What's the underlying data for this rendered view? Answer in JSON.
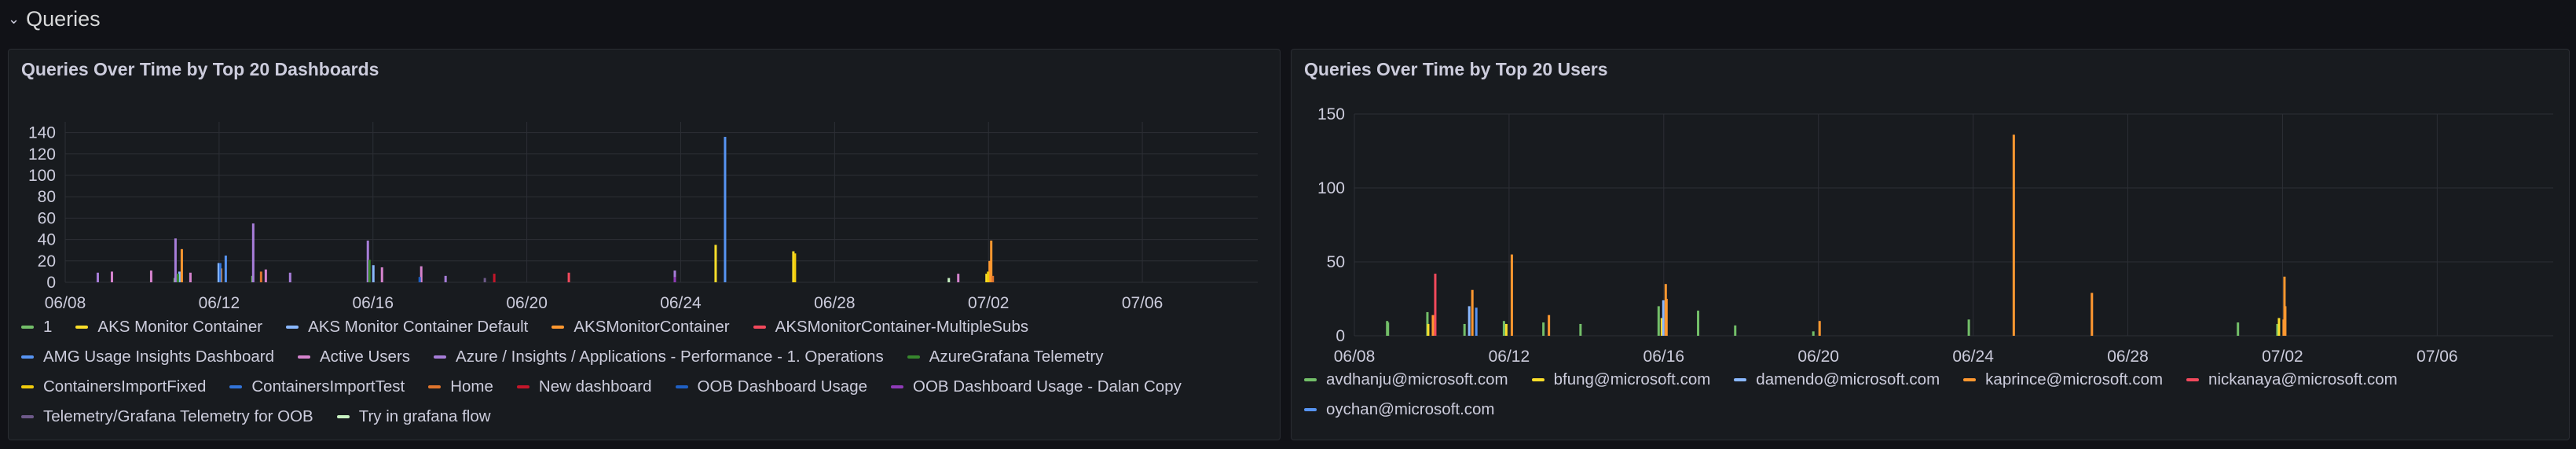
{
  "row": {
    "title": "Queries",
    "chevron": "chevron-down-icon"
  },
  "chart_data": [
    {
      "type": "bar",
      "title": "Queries Over Time by Top 20 Dashboards",
      "xlabel": "",
      "ylabel": "",
      "x_ticks": [
        "06/08",
        "06/12",
        "06/16",
        "06/20",
        "06/24",
        "06/28",
        "07/02",
        "07/06"
      ],
      "y_ticks": [
        "0",
        "20",
        "40",
        "60",
        "80",
        "100",
        "120",
        "140"
      ],
      "ylim": [
        0,
        150
      ],
      "xlim": [
        "06/08",
        "07/09"
      ],
      "grid": true,
      "legend_position": "bottom",
      "series": [
        {
          "name": "1",
          "color": "#73bf69",
          "points": [
            [
              "06/11",
              4
            ],
            [
              "06/13",
              6
            ]
          ]
        },
        {
          "name": "AKS Monitor Container",
          "color": "#fade2a",
          "points": [
            [
              "06/25",
              35
            ],
            [
              "06/27",
              29
            ],
            [
              "07/02",
              8
            ]
          ]
        },
        {
          "name": "AKS Monitor Container Default",
          "color": "#8ab8ff",
          "points": [
            [
              "06/11",
              10
            ],
            [
              "06/12",
              18
            ],
            [
              "06/16",
              16
            ]
          ]
        },
        {
          "name": "AKSMonitorContainer",
          "color": "#ff9830",
          "points": [
            [
              "06/11",
              31
            ],
            [
              "06/12",
              13
            ],
            [
              "07/02",
              39
            ],
            [
              "07/02",
              20
            ]
          ]
        },
        {
          "name": "AKSMonitorContainer-MultipleSubs",
          "color": "#f2495c",
          "points": [
            [
              "06/21",
              9
            ]
          ]
        },
        {
          "name": "AMG Usage Insights Dashboard",
          "color": "#5794f2",
          "points": [
            [
              "06/25",
              136
            ],
            [
              "06/12",
              25
            ]
          ]
        },
        {
          "name": "Active Users",
          "color": "#d683ce",
          "points": [
            [
              "06/09",
              10
            ],
            [
              "06/10",
              11
            ],
            [
              "06/11",
              9
            ],
            [
              "06/13",
              12
            ],
            [
              "06/16",
              14
            ],
            [
              "06/17",
              15
            ],
            [
              "07/01",
              8
            ]
          ]
        },
        {
          "name": "Azure / Insights / Applications - Performance - 1. Operations",
          "color": "#a77dd9",
          "points": [
            [
              "06/09",
              9
            ],
            [
              "06/11",
              41
            ],
            [
              "06/13",
              55
            ],
            [
              "06/14",
              9
            ],
            [
              "06/16",
              39
            ],
            [
              "06/18",
              6
            ],
            [
              "06/24",
              11
            ]
          ]
        },
        {
          "name": "AzureGrafana Telemetry",
          "color": "#37872d",
          "points": [
            [
              "06/16",
              21
            ],
            [
              "06/11",
              8
            ]
          ]
        },
        {
          "name": "ContainersImportFixed",
          "color": "#f2cc0c",
          "points": [
            [
              "06/27",
              27
            ],
            [
              "07/02",
              10
            ]
          ]
        },
        {
          "name": "ContainersImportTest",
          "color": "#3274d9",
          "points": [
            [
              "06/12",
              18
            ]
          ]
        },
        {
          "name": "Home",
          "color": "#e0752d",
          "points": [
            [
              "06/13",
              10
            ],
            [
              "07/02",
              6
            ]
          ]
        },
        {
          "name": "New dashboard",
          "color": "#c4162a",
          "points": [
            [
              "06/19",
              8
            ]
          ]
        },
        {
          "name": "OOB Dashboard Usage",
          "color": "#1f60c4",
          "points": [
            [
              "06/17",
              5
            ]
          ]
        },
        {
          "name": "OOB Dashboard Usage - Dalan Copy",
          "color": "#8f3bb8",
          "points": [
            [
              "06/24",
              5
            ]
          ]
        },
        {
          "name": "Telemetry/Grafana Telemetry for OOB",
          "color": "#6e5a8a",
          "points": [
            [
              "06/19",
              4
            ]
          ]
        },
        {
          "name": "Try in grafana flow",
          "color": "#c8f2c2",
          "points": [
            [
              "07/01",
              4
            ]
          ]
        }
      ]
    },
    {
      "type": "bar",
      "title": "Queries Over Time by Top 20 Users",
      "xlabel": "",
      "ylabel": "",
      "x_ticks": [
        "06/08",
        "06/12",
        "06/16",
        "06/20",
        "06/24",
        "06/28",
        "07/02",
        "07/06"
      ],
      "y_ticks": [
        "0",
        "50",
        "100",
        "150"
      ],
      "ylim": [
        0,
        150
      ],
      "xlim": [
        "06/08",
        "07/09"
      ],
      "grid": true,
      "legend_position": "bottom",
      "series": [
        {
          "name": "avdhanju@microsoft.com",
          "color": "#73bf69",
          "points": [
            [
              "06/09",
              10
            ],
            [
              "06/09",
              9
            ],
            [
              "06/10",
              16
            ],
            [
              "06/11",
              8
            ],
            [
              "06/12",
              10
            ],
            [
              "06/13",
              9
            ],
            [
              "06/14",
              8
            ],
            [
              "06/16",
              20
            ],
            [
              "06/17",
              17
            ],
            [
              "06/18",
              7
            ],
            [
              "06/20",
              3
            ],
            [
              "06/24",
              11
            ],
            [
              "07/01",
              9
            ],
            [
              "07/02",
              8
            ]
          ]
        },
        {
          "name": "bfung@microsoft.com",
          "color": "#fade2a",
          "points": [
            [
              "06/10",
              8
            ],
            [
              "06/12",
              8
            ],
            [
              "06/16",
              12
            ],
            [
              "07/02",
              12
            ]
          ]
        },
        {
          "name": "damendo@microsoft.com",
          "color": "#8ab8ff",
          "points": [
            [
              "06/11",
              20
            ],
            [
              "06/16",
              24
            ]
          ]
        },
        {
          "name": "kaprince@microsoft.com",
          "color": "#ff9830",
          "points": [
            [
              "06/10",
              14
            ],
            [
              "06/11",
              31
            ],
            [
              "06/12",
              55
            ],
            [
              "06/13",
              14
            ],
            [
              "06/16",
              35
            ],
            [
              "06/16",
              25
            ],
            [
              "06/20",
              10
            ],
            [
              "06/25",
              136
            ],
            [
              "06/27",
              29
            ],
            [
              "07/02",
              11
            ],
            [
              "07/02",
              40
            ],
            [
              "07/02",
              20
            ]
          ]
        },
        {
          "name": "nickanaya@microsoft.com",
          "color": "#f2495c",
          "points": [
            [
              "06/10",
              42
            ]
          ]
        },
        {
          "name": "oychan@microsoft.com",
          "color": "#5794f2",
          "points": [
            [
              "06/11",
              19
            ]
          ]
        }
      ]
    }
  ]
}
